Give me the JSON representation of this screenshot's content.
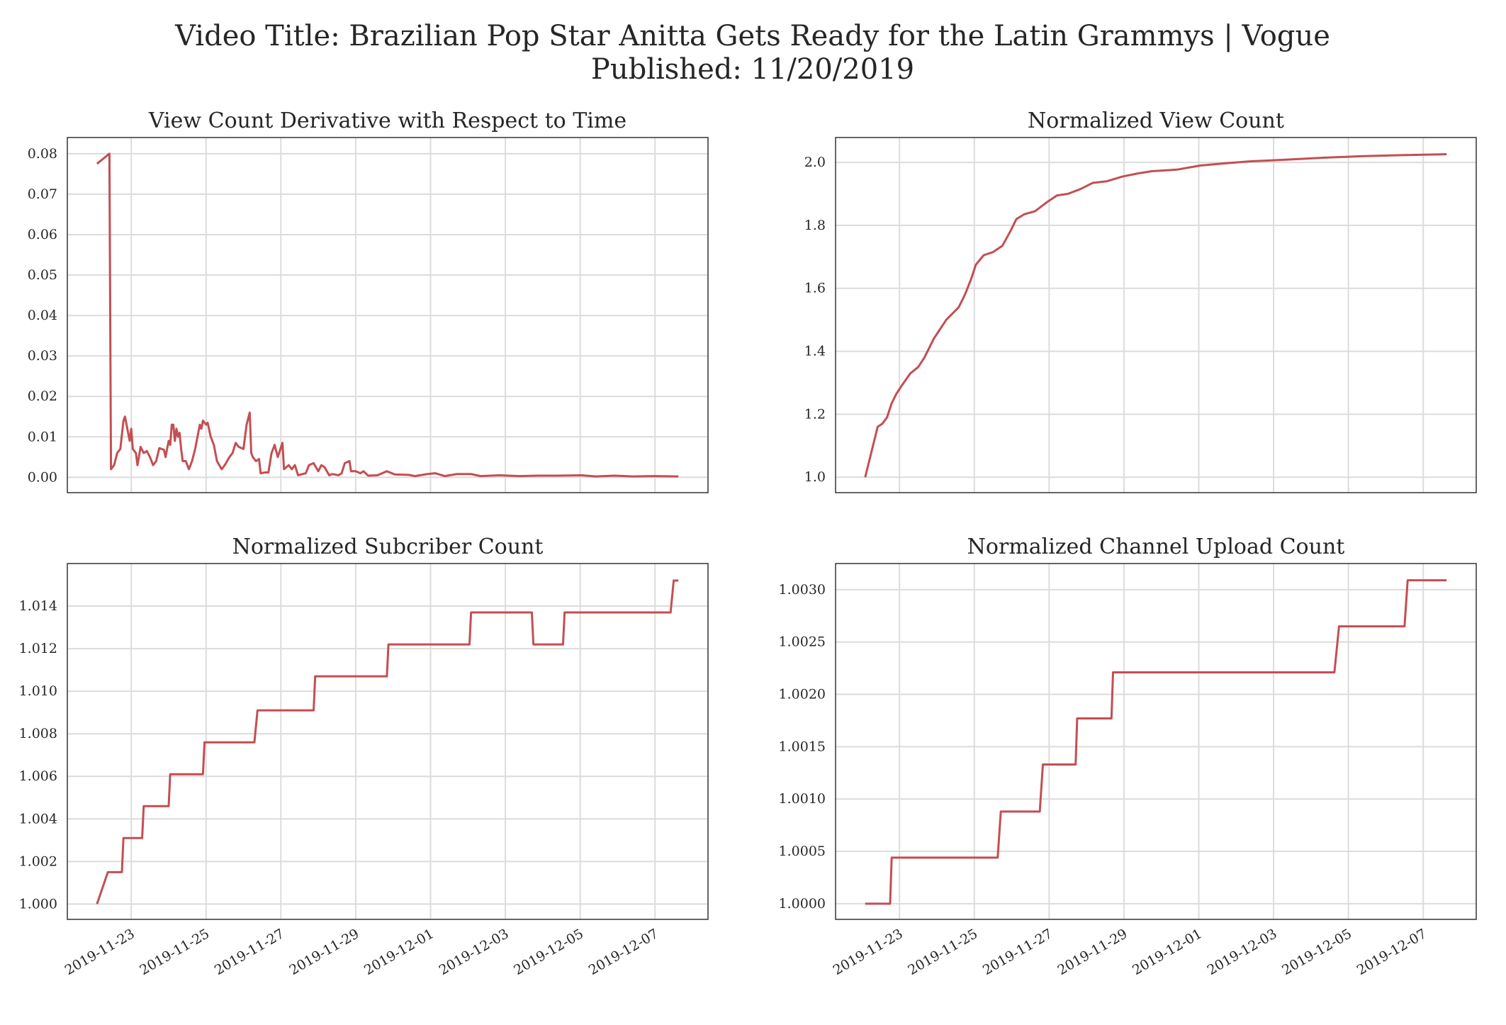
{
  "title": "Video Title: Brazilian Pop Star Anitta Gets Ready for the Latin Grammys | Vogue",
  "subtitle": "Published: 11/20/2019",
  "chart_data": [
    {
      "type": "line",
      "title": "View Count Derivative with Respect to Time",
      "color": "#c44e52",
      "grid": true,
      "xtick_labels": false,
      "xlim": [
        "2019-11-21T07:00",
        "2019-12-08T10:00"
      ],
      "xticks": [
        "2019-11-23",
        "2019-11-25",
        "2019-11-27",
        "2019-11-29",
        "2019-12-01",
        "2019-12-03",
        "2019-12-05",
        "2019-12-07"
      ],
      "ylim": [
        -0.0038,
        0.084
      ],
      "yticks": [
        {
          "value": 0,
          "label": "0.00"
        },
        0.01,
        0.02,
        0.03,
        0.04,
        0.05,
        0.06,
        0.07,
        0.08
      ],
      "x": [
        "2019-11-22T02:00",
        "2019-11-22T10:00",
        "2019-11-22T11:00",
        "2019-11-22T13:00",
        "2019-11-22T15:00",
        "2019-11-22T17:00",
        "2019-11-22T19:00",
        "2019-11-22T20:00",
        "2019-11-22T22:00",
        "2019-11-22T23:00",
        "2019-11-23T00:00",
        "2019-11-23T01:00",
        "2019-11-23T03:00",
        "2019-11-23T04:00",
        "2019-11-23T06:00",
        "2019-11-23T08:00",
        "2019-11-23T10:00",
        "2019-11-23T12:00",
        "2019-11-23T14:00",
        "2019-11-23T16:00",
        "2019-11-23T18:00",
        "2019-11-23T21:00",
        "2019-11-23T22:00",
        "2019-11-24T00:00",
        "2019-11-24T01:00",
        "2019-11-24T02:00",
        "2019-11-24T03:00",
        "2019-11-24T04:00",
        "2019-11-24T05:00",
        "2019-11-24T06:00",
        "2019-11-24T07:00",
        "2019-11-24T08:00",
        "2019-11-24T09:00",
        "2019-11-24T11:00",
        "2019-11-24T13:00",
        "2019-11-24T15:00",
        "2019-11-24T17:00",
        "2019-11-24T20:00",
        "2019-11-24T21:00",
        "2019-11-24T22:00",
        "2019-11-25T00:00",
        "2019-11-25T01:00",
        "2019-11-25T03:00",
        "2019-11-25T05:00",
        "2019-11-25T07:00",
        "2019-11-25T10:00",
        "2019-11-25T12:00",
        "2019-11-25T15:00",
        "2019-11-25T17:00",
        "2019-11-25T19:00",
        "2019-11-25T21:00",
        "2019-11-26T00:00",
        "2019-11-26T02:00",
        "2019-11-26T04:00",
        "2019-11-26T05:00",
        "2019-11-26T06:00",
        "2019-11-26T08:00",
        "2019-11-26T10:00",
        "2019-11-26T11:00",
        "2019-11-26T14:00",
        "2019-11-26T16:00",
        "2019-11-26T18:00",
        "2019-11-26T20:00",
        "2019-11-26T22:00",
        "2019-11-27T01:00",
        "2019-11-27T02:00",
        "2019-11-27T05:00",
        "2019-11-27T07:00",
        "2019-11-27T09:00",
        "2019-11-27T11:00",
        "2019-11-27T14:00",
        "2019-11-27T16:00",
        "2019-11-27T18:00",
        "2019-11-27T21:00",
        "2019-11-28T00:00",
        "2019-11-28T02:00",
        "2019-11-28T04:00",
        "2019-11-28T07:00",
        "2019-11-28T09:00",
        "2019-11-28T13:00",
        "2019-11-28T15:00",
        "2019-11-28T17:00",
        "2019-11-28T20:00",
        "2019-11-28T21:00",
        "2019-11-29T00:00",
        "2019-11-29T03:00",
        "2019-11-29T05:00",
        "2019-11-29T08:00",
        "2019-11-29T14:00",
        "2019-11-29T20:00",
        "2019-11-30T01:00",
        "2019-11-30T10:00",
        "2019-11-30T14:00",
        "2019-11-30T22:00",
        "2019-12-01T03:00",
        "2019-12-01T09:00",
        "2019-12-01T17:00",
        "2019-12-02T02:00",
        "2019-12-02T08:00",
        "2019-12-02T20:00",
        "2019-12-03T09:00",
        "2019-12-03T21:00",
        "2019-12-04T09:00",
        "2019-12-05T01:00",
        "2019-12-05T10:00",
        "2019-12-05T22:00",
        "2019-12-06T10:00",
        "2019-12-06T23:00",
        "2019-12-07T15:00"
      ],
      "values": [
        0.0775,
        0.08,
        0.002,
        0.003,
        0.006,
        0.007,
        0.014,
        0.015,
        0.011,
        0.009,
        0.012,
        0.007,
        0.006,
        0.003,
        0.0075,
        0.006,
        0.0065,
        0.005,
        0.003,
        0.004,
        0.0072,
        0.0068,
        0.005,
        0.009,
        0.008,
        0.013,
        0.013,
        0.009,
        0.012,
        0.01,
        0.011,
        0.007,
        0.004,
        0.004,
        0.002,
        0.004,
        0.007,
        0.013,
        0.012,
        0.014,
        0.013,
        0.0135,
        0.01,
        0.008,
        0.004,
        0.002,
        0.003,
        0.005,
        0.006,
        0.0085,
        0.0075,
        0.007,
        0.013,
        0.016,
        0.006,
        0.005,
        0.004,
        0.0045,
        0.001,
        0.0012,
        0.0012,
        0.006,
        0.008,
        0.005,
        0.0085,
        0.002,
        0.003,
        0.002,
        0.003,
        0.0005,
        0.0008,
        0.001,
        0.003,
        0.0035,
        0.0015,
        0.003,
        0.0025,
        0.0005,
        0.0008,
        0.0005,
        0.001,
        0.0035,
        0.004,
        0.0015,
        0.0015,
        0.001,
        0.0015,
        0.0004,
        0.0005,
        0.0015,
        0.0007,
        0.0006,
        0.0003,
        0.0008,
        0.001,
        0.0003,
        0.0008,
        0.0008,
        0.0003,
        0.0005,
        0.0003,
        0.0004,
        0.0004,
        0.0005,
        0.0002,
        0.0004,
        0.0002,
        0.0003,
        0.0002
      ]
    },
    {
      "type": "line",
      "title": "Normalized View Count",
      "color": "#c44e52",
      "grid": true,
      "xtick_labels": false,
      "xlim": [
        "2019-11-21T07:00",
        "2019-12-08T10:00"
      ],
      "xticks": [
        "2019-11-23",
        "2019-11-25",
        "2019-11-27",
        "2019-11-29",
        "2019-12-01",
        "2019-12-03",
        "2019-12-05",
        "2019-12-07"
      ],
      "ylim": [
        0.951,
        2.079
      ],
      "yticks": [
        {
          "value": 1,
          "label": "1.0"
        },
        1.2,
        1.4,
        1.6,
        1.8,
        {
          "value": 2,
          "label": "2.0"
        }
      ],
      "x": [
        "2019-11-22T02:00",
        "2019-11-22T10:00",
        "2019-11-22T13:00",
        "2019-11-22T16:00",
        "2019-11-22T19:00",
        "2019-11-22T22:00",
        "2019-11-23T02:00",
        "2019-11-23T07:00",
        "2019-11-23T12:00",
        "2019-11-23T16:00",
        "2019-11-23T20:00",
        "2019-11-23T22:00",
        "2019-11-24T02:00",
        "2019-11-24T06:00",
        "2019-11-24T10:00",
        "2019-11-24T14:00",
        "2019-11-24T18:00",
        "2019-11-24T22:00",
        "2019-11-25T01:00",
        "2019-11-25T06:00",
        "2019-11-25T12:00",
        "2019-11-25T18:00",
        "2019-11-25T23:00",
        "2019-11-26T03:00",
        "2019-11-26T08:00",
        "2019-11-26T15:00",
        "2019-11-26T23:00",
        "2019-11-27T05:00",
        "2019-11-27T12:00",
        "2019-11-27T20:00",
        "2019-11-28T04:00",
        "2019-11-28T13:00",
        "2019-11-28T23:00",
        "2019-11-29T09:00",
        "2019-11-29T18:00",
        "2019-11-30T10:00",
        "2019-12-01T01:00",
        "2019-12-01T17:00",
        "2019-12-02T08:00",
        "2019-12-03T09:00",
        "2019-12-04T09:00",
        "2019-12-05T10:00",
        "2019-12-06T10:00",
        "2019-12-07T15:00"
      ],
      "values": [
        1.0,
        1.16,
        1.17,
        1.19,
        1.235,
        1.265,
        1.295,
        1.33,
        1.35,
        1.38,
        1.42,
        1.44,
        1.47,
        1.5,
        1.52,
        1.54,
        1.58,
        1.63,
        1.675,
        1.705,
        1.715,
        1.735,
        1.78,
        1.82,
        1.835,
        1.845,
        1.875,
        1.895,
        1.9,
        1.915,
        1.935,
        1.94,
        1.955,
        1.965,
        1.972,
        1.977,
        1.99,
        1.997,
        2.003,
        2.009,
        2.015,
        2.02,
        2.023,
        2.026
      ]
    },
    {
      "type": "line",
      "title": "Normalized Subcriber Count",
      "color": "#c44e52",
      "grid": true,
      "xtick_labels": true,
      "xlim": [
        "2019-11-21T07:00",
        "2019-12-08T10:00"
      ],
      "xticks": [
        "2019-11-23",
        "2019-11-25",
        "2019-11-27",
        "2019-11-29",
        "2019-12-01",
        "2019-12-03",
        "2019-12-05",
        "2019-12-07"
      ],
      "ylim": [
        0.99928,
        1.016
      ],
      "yticks": [
        {
          "value": 1,
          "label": "1.000"
        },
        1.002,
        1.004,
        1.006,
        1.008,
        {
          "value": 1.01,
          "label": "1.010"
        },
        1.012,
        1.014
      ],
      "x": [
        "2019-11-22T02:00",
        "2019-11-22T09:00",
        "2019-11-22T18:00",
        "2019-11-22T19:00",
        "2019-11-23T07:00",
        "2019-11-23T08:00",
        "2019-11-24T00:00",
        "2019-11-24T01:00",
        "2019-11-24T22:00",
        "2019-11-24T23:00",
        "2019-11-26T07:00",
        "2019-11-26T09:00",
        "2019-11-27T21:00",
        "2019-11-27T22:00",
        "2019-11-29T20:00",
        "2019-11-29T21:00",
        "2019-12-02T01:00",
        "2019-12-02T02:00",
        "2019-12-03T17:00",
        "2019-12-03T18:00",
        "2019-12-04T13:00",
        "2019-12-04T14:00",
        "2019-12-07T10:00",
        "2019-12-07T12:00",
        "2019-12-07T15:00"
      ],
      "values": [
        1.0,
        1.0015,
        1.0015,
        1.0031,
        1.0031,
        1.0046,
        1.0046,
        1.0061,
        1.0061,
        1.0076,
        1.0076,
        1.0091,
        1.0091,
        1.0107,
        1.0107,
        1.0122,
        1.0122,
        1.0137,
        1.0137,
        1.0122,
        1.0122,
        1.0137,
        1.0137,
        1.0152,
        1.0152
      ]
    },
    {
      "type": "line",
      "title": "Normalized Channel Upload Count",
      "color": "#c44e52",
      "grid": true,
      "xtick_labels": true,
      "xlim": [
        "2019-11-21T07:00",
        "2019-12-08T10:00"
      ],
      "xticks": [
        "2019-11-23",
        "2019-11-25",
        "2019-11-27",
        "2019-11-29",
        "2019-12-01",
        "2019-12-03",
        "2019-12-05",
        "2019-12-07"
      ],
      "ylim": [
        0.99985,
        1.00325
      ],
      "yticks": [
        {
          "value": 1,
          "label": "1.0000"
        },
        1.0005,
        {
          "value": 1.001,
          "label": "1.0010"
        },
        1.0015,
        {
          "value": 1.002,
          "label": "1.0020"
        },
        1.0025,
        {
          "value": 1.003,
          "label": "1.0030"
        }
      ],
      "x": [
        "2019-11-22T02:00",
        "2019-11-22T18:00",
        "2019-11-22T19:00",
        "2019-11-25T15:00",
        "2019-11-25T17:00",
        "2019-11-26T18:00",
        "2019-11-26T20:00",
        "2019-11-27T17:00",
        "2019-11-27T18:00",
        "2019-11-28T16:00",
        "2019-11-28T17:00",
        "2019-12-04T15:00",
        "2019-12-04T18:00",
        "2019-12-06T12:00",
        "2019-12-06T14:00",
        "2019-12-07T15:00"
      ],
      "values": [
        1.0,
        1.0,
        1.00044,
        1.00044,
        1.00088,
        1.00088,
        1.00133,
        1.00133,
        1.00177,
        1.00177,
        1.00221,
        1.00221,
        1.00265,
        1.00265,
        1.00309,
        1.00309
      ]
    }
  ]
}
